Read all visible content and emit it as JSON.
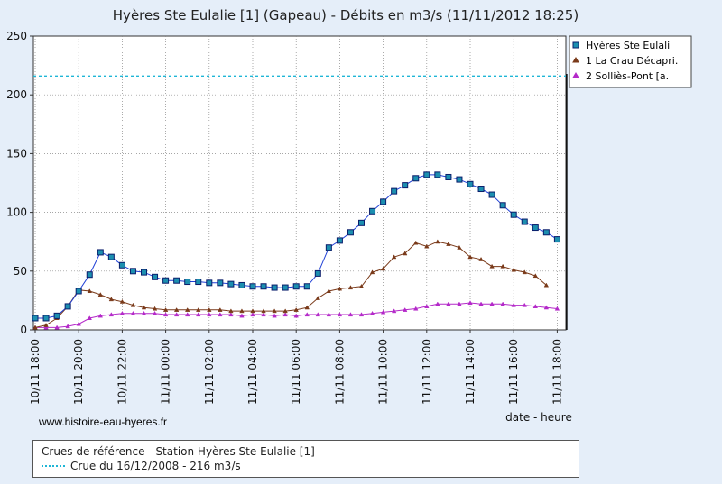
{
  "chart_data": {
    "type": "line",
    "title": "Hyères Ste Eulalie [1] (Gapeau) - Débits en m3/s (11/11/2012 18:25)",
    "xlabel": "date - heure",
    "ylabel": "",
    "ylim": [
      0,
      250
    ],
    "y_ticks": [
      "0",
      "50",
      "100",
      "150",
      "200",
      "250"
    ],
    "x_ticks": [
      "10/11 18:00",
      "10/11 20:00",
      "10/11 22:00",
      "11/11 00:00",
      "11/11 02:00",
      "11/11 04:00",
      "11/11 06:00",
      "11/11 08:00",
      "11/11 10:00",
      "11/11 12:00",
      "11/11 14:00",
      "11/11 16:00",
      "11/11 18:00"
    ],
    "reference_line": {
      "value": 216,
      "color": "#1fb6d6"
    },
    "series": [
      {
        "name": "Hyères Ste Eulali",
        "color": "#1f3fd6",
        "marker": "square",
        "values": [
          [
            0,
            10
          ],
          [
            0.5,
            10
          ],
          [
            1,
            12
          ],
          [
            1.5,
            20
          ],
          [
            2,
            33
          ],
          [
            2.5,
            47
          ],
          [
            3,
            66
          ],
          [
            3.5,
            62
          ],
          [
            4,
            55
          ],
          [
            4.5,
            50
          ],
          [
            5,
            49
          ],
          [
            5.5,
            45
          ],
          [
            6,
            42
          ],
          [
            6.5,
            42
          ],
          [
            7,
            41
          ],
          [
            7.5,
            41
          ],
          [
            8,
            40
          ],
          [
            8.5,
            40
          ],
          [
            9,
            39
          ],
          [
            9.5,
            38
          ],
          [
            10,
            37
          ],
          [
            10.5,
            37
          ],
          [
            11,
            36
          ],
          [
            11.5,
            36
          ],
          [
            12,
            37
          ],
          [
            12.5,
            37
          ],
          [
            13,
            48
          ],
          [
            13.5,
            70
          ],
          [
            14,
            76
          ],
          [
            14.5,
            83
          ],
          [
            15,
            91
          ],
          [
            15.5,
            101
          ],
          [
            16,
            109
          ],
          [
            16.5,
            118
          ],
          [
            17,
            123
          ],
          [
            17.5,
            129
          ],
          [
            18,
            132
          ],
          [
            18.5,
            132
          ],
          [
            19,
            130
          ],
          [
            19.5,
            128
          ],
          [
            20,
            124
          ],
          [
            20.5,
            120
          ],
          [
            21,
            115
          ],
          [
            21.5,
            106
          ],
          [
            22,
            98
          ],
          [
            22.5,
            92
          ],
          [
            23,
            87
          ],
          [
            23.5,
            83
          ],
          [
            24,
            77
          ]
        ]
      },
      {
        "name": "1 La Crau Décapri.",
        "color": "#7a3a1a",
        "marker": "triangle",
        "values": [
          [
            0,
            2
          ],
          [
            0.5,
            4
          ],
          [
            1,
            10
          ],
          [
            1.5,
            20
          ],
          [
            2,
            34
          ],
          [
            2.5,
            33
          ],
          [
            3,
            30
          ],
          [
            3.5,
            26
          ],
          [
            4,
            24
          ],
          [
            4.5,
            21
          ],
          [
            5,
            19
          ],
          [
            5.5,
            18
          ],
          [
            6,
            17
          ],
          [
            6.5,
            17
          ],
          [
            7,
            17
          ],
          [
            7.5,
            17
          ],
          [
            8,
            17
          ],
          [
            8.5,
            17
          ],
          [
            9,
            16
          ],
          [
            9.5,
            16
          ],
          [
            10,
            16
          ],
          [
            10.5,
            16
          ],
          [
            11,
            16
          ],
          [
            11.5,
            16
          ],
          [
            12,
            17
          ],
          [
            12.5,
            19
          ],
          [
            13,
            27
          ],
          [
            13.5,
            33
          ],
          [
            14,
            35
          ],
          [
            14.5,
            36
          ],
          [
            15,
            37
          ],
          [
            15.5,
            49
          ],
          [
            16,
            52
          ],
          [
            16.5,
            62
          ],
          [
            17,
            65
          ],
          [
            17.5,
            74
          ],
          [
            18,
            71
          ],
          [
            18.5,
            75
          ],
          [
            19,
            73
          ],
          [
            19.5,
            70
          ],
          [
            20,
            62
          ],
          [
            20.5,
            60
          ],
          [
            21,
            54
          ],
          [
            21.5,
            54
          ],
          [
            22,
            51
          ],
          [
            22.5,
            49
          ],
          [
            23,
            46
          ],
          [
            23.5,
            38
          ]
        ]
      },
      {
        "name": "2 Solliès-Pont [a.",
        "color": "#b429c9",
        "marker": "triangle",
        "values": [
          [
            0,
            2
          ],
          [
            0.5,
            2
          ],
          [
            1,
            2
          ],
          [
            1.5,
            3
          ],
          [
            2,
            5
          ],
          [
            2.5,
            10
          ],
          [
            3,
            12
          ],
          [
            3.5,
            13
          ],
          [
            4,
            14
          ],
          [
            4.5,
            14
          ],
          [
            5,
            14
          ],
          [
            5.5,
            14
          ],
          [
            6,
            13
          ],
          [
            6.5,
            13
          ],
          [
            7,
            13
          ],
          [
            7.5,
            13
          ],
          [
            8,
            13
          ],
          [
            8.5,
            13
          ],
          [
            9,
            13
          ],
          [
            9.5,
            12
          ],
          [
            10,
            13
          ],
          [
            10.5,
            13
          ],
          [
            11,
            12
          ],
          [
            11.5,
            13
          ],
          [
            12,
            12
          ],
          [
            12.5,
            13
          ],
          [
            13,
            13
          ],
          [
            13.5,
            13
          ],
          [
            14,
            13
          ],
          [
            14.5,
            13
          ],
          [
            15,
            13
          ],
          [
            15.5,
            14
          ],
          [
            16,
            15
          ],
          [
            16.5,
            16
          ],
          [
            17,
            17
          ],
          [
            17.5,
            18
          ],
          [
            18,
            20
          ],
          [
            18.5,
            22
          ],
          [
            19,
            22
          ],
          [
            19.5,
            22
          ],
          [
            20,
            23
          ],
          [
            20.5,
            22
          ],
          [
            21,
            22
          ],
          [
            21.5,
            22
          ],
          [
            22,
            21
          ],
          [
            22.5,
            21
          ],
          [
            23,
            20
          ],
          [
            23.5,
            19
          ],
          [
            24,
            18
          ]
        ]
      }
    ]
  },
  "footer": {
    "website": "www.histoire-eau-hyeres.fr",
    "reference_title": "Crues de référence - Station Hyères Ste Eulalie [1]",
    "reference_item": "Crue du 16/12/2008 - 216 m3/s"
  }
}
